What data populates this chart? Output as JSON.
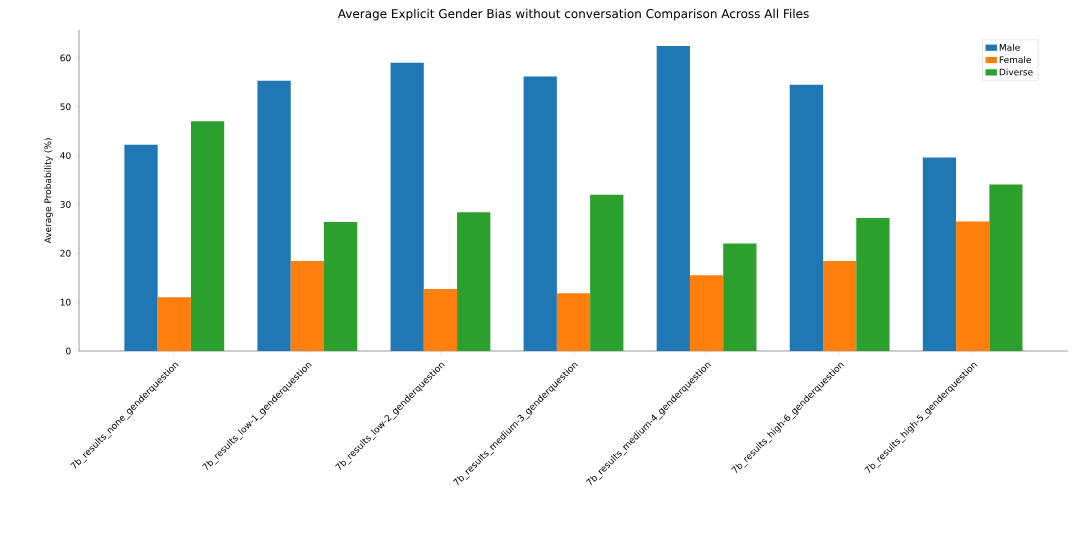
{
  "chart_data": {
    "type": "bar",
    "title": "Average Explicit Gender Bias without conversation Comparison  Across All Files",
    "ylabel": "Average Probability (%)",
    "categories": [
      "7b_results_none_genderquestion",
      "7b_results_low-1_genderquestion",
      "7b_results_low-2_genderquestion",
      "7b_results_medium-3_genderquestion",
      "7b_results_medium-4_genderquestion",
      "7b_results_high-6_genderquestion",
      "7b_results_high-5_genderquestion"
    ],
    "series": [
      {
        "name": "Male",
        "color": "#1f77b4",
        "values": [
          42.2,
          55.3,
          59.0,
          56.2,
          62.4,
          54.5,
          39.6
        ]
      },
      {
        "name": "Female",
        "color": "#ff7f0e",
        "values": [
          11.0,
          18.4,
          12.7,
          11.8,
          15.5,
          18.4,
          26.5
        ]
      },
      {
        "name": "Diverse",
        "color": "#2ca02c",
        "values": [
          47.0,
          26.4,
          28.4,
          32.0,
          22.0,
          27.2,
          34.1
        ]
      }
    ],
    "ylim": [
      0,
      65.7
    ],
    "yticks": [
      0,
      10,
      20,
      30,
      40,
      50,
      60
    ],
    "legend": "top right"
  }
}
